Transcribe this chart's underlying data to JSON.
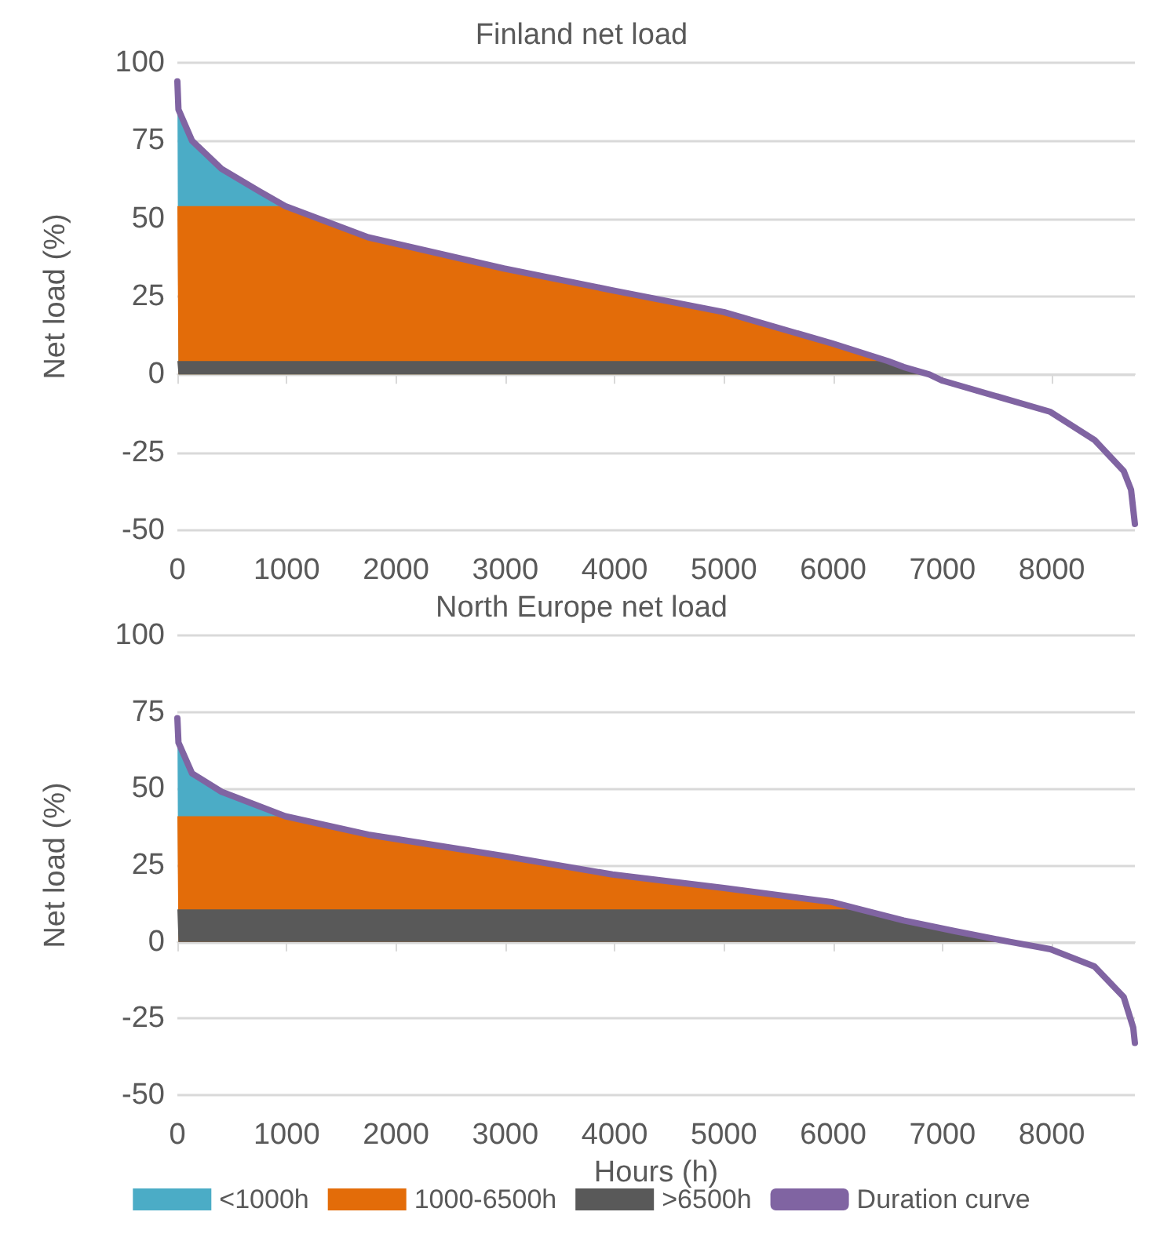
{
  "chart_data": [
    {
      "type": "area",
      "title": "Finland net load",
      "ylabel": "Net load (%)",
      "stacked": true,
      "grid": "y",
      "legend": false,
      "xlim": [
        0,
        8760
      ],
      "xticks": [
        0,
        1000,
        2000,
        3000,
        4000,
        5000,
        6000,
        7000,
        8000
      ],
      "ylim": [
        -50,
        100
      ],
      "yticks": [
        -50,
        -25,
        0,
        25,
        50,
        75,
        100
      ],
      "x": [
        0,
        10,
        134,
        403,
        738,
        987,
        1745,
        2987,
        3980,
        5000,
        5986,
        6500,
        6644,
        6880,
        7000,
        7987,
        8390,
        8658,
        8725,
        8760
      ],
      "series": [
        {
          "color": "#595959",
          "values": [
            4.3,
            4.3,
            4.3,
            4.3,
            4.3,
            4.3,
            4.3,
            4.3,
            4.3,
            4.3,
            4.3,
            4.3,
            2.4,
            0,
            null,
            null,
            null,
            null,
            null,
            null
          ]
        },
        {
          "color": "#e36c09",
          "values": [
            49.7,
            49.7,
            49.7,
            49.7,
            49.7,
            49.7,
            39.7,
            29.7,
            22.7,
            15.7,
            5.7,
            0,
            0,
            0,
            null,
            null,
            null,
            null,
            null,
            null
          ]
        },
        {
          "color": "#4bacc6",
          "values": [
            40,
            31,
            21,
            12,
            5,
            0,
            0,
            0,
            0,
            0,
            0,
            0,
            0,
            0,
            null,
            null,
            null,
            null,
            null,
            null
          ]
        },
        {
          "type": "line",
          "color": "#8064a2",
          "values": [
            94,
            85,
            75,
            66,
            59,
            54,
            44,
            34,
            27,
            20,
            10,
            4.3,
            2.4,
            0,
            -2,
            -12,
            -21,
            -31,
            -37,
            -48
          ]
        }
      ]
    },
    {
      "type": "area",
      "title": "North Europe net load",
      "xlabel": "Hours (h)",
      "ylabel": "Net load (%)",
      "stacked": true,
      "grid": "y",
      "legend": "bottom",
      "xlim": [
        0,
        8760
      ],
      "xticks": [
        0,
        1000,
        2000,
        3000,
        4000,
        5000,
        6000,
        7000,
        8000
      ],
      "ylim": [
        -50,
        100
      ],
      "yticks": [
        -50,
        -25,
        0,
        25,
        50,
        75,
        100
      ],
      "x": [
        0,
        10,
        134,
        403,
        987,
        1745,
        2987,
        3980,
        5000,
        5986,
        6250,
        6644,
        7114,
        7617,
        7987,
        8390,
        8658,
        8745,
        8760
      ],
      "series": [
        {
          "name": ">6500h",
          "color": "#595959",
          "values": [
            10.6,
            10.6,
            10.6,
            10.6,
            10.6,
            10.6,
            10.6,
            10.6,
            10.6,
            10.6,
            10.6,
            7,
            3.5,
            0,
            null,
            null,
            null,
            null,
            null
          ]
        },
        {
          "name": "1000-6500h",
          "color": "#e36c09",
          "values": [
            30.4,
            30.4,
            30.4,
            30.4,
            30.4,
            24.4,
            17.4,
            11.4,
            7,
            2.4,
            0,
            0,
            0,
            0,
            null,
            null,
            null,
            null,
            null
          ]
        },
        {
          "name": "<1000h",
          "color": "#4bacc6",
          "values": [
            32.4,
            24.4,
            14.4,
            8.4,
            0,
            0,
            0,
            0,
            0,
            0,
            0,
            0,
            0,
            0,
            null,
            null,
            null,
            null,
            null
          ]
        },
        {
          "name": "Duration curve",
          "type": "line",
          "color": "#8064a2",
          "values": [
            73,
            65,
            55,
            49,
            41,
            35,
            28,
            22,
            17.6,
            13,
            10.6,
            7,
            3.5,
            0,
            -2.4,
            -8,
            -18,
            -28,
            -33
          ]
        }
      ]
    }
  ]
}
